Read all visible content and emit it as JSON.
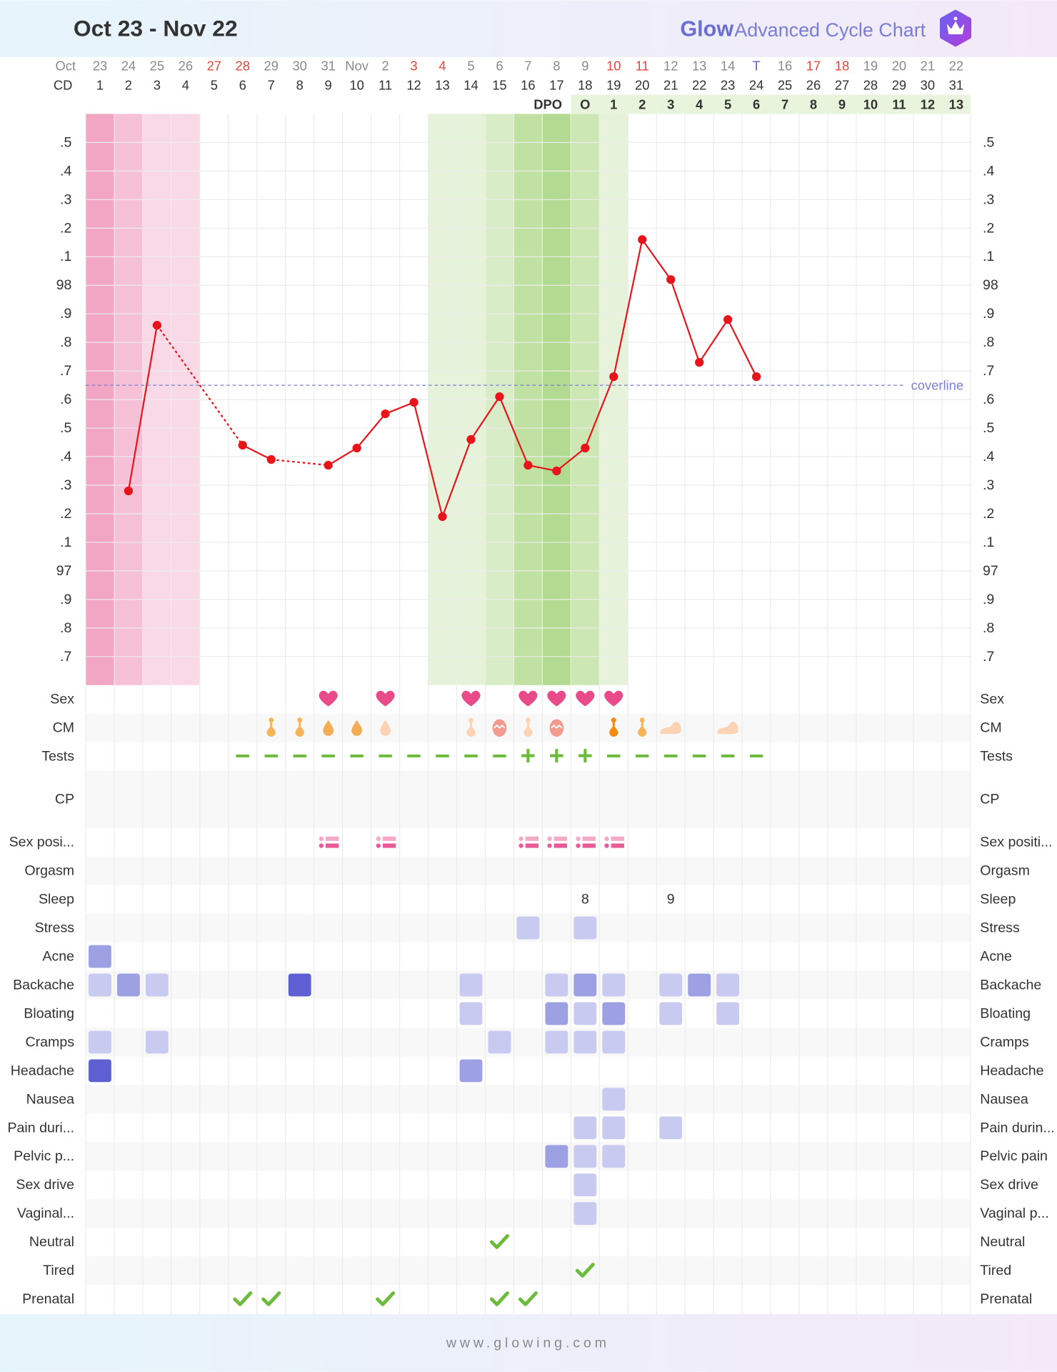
{
  "header": {
    "title": "Oct 23 - Nov 22",
    "brand": "Glow",
    "product": "Advanced Cycle Chart",
    "footer": "www.glowing.com"
  },
  "chart_data": {
    "type": "line",
    "month_label": "Oct",
    "cd_label": "CD",
    "dpo_label": "DPO",
    "dates": [
      23,
      24,
      25,
      26,
      27,
      28,
      29,
      30,
      31,
      "Nov",
      2,
      3,
      4,
      5,
      6,
      7,
      8,
      9,
      10,
      11,
      12,
      13,
      14,
      "T",
      16,
      17,
      18,
      19,
      20,
      21,
      22
    ],
    "date_colors": [
      "#8a8a8a",
      "#8a8a8a",
      "#8a8a8a",
      "#8a8a8a",
      "#e5473c",
      "#e5473c",
      "#8a8a8a",
      "#8a8a8a",
      "#8a8a8a",
      "#8a8a8a",
      "#8a8a8a",
      "#e5473c",
      "#e5473c",
      "#8a8a8a",
      "#8a8a8a",
      "#8a8a8a",
      "#8a8a8a",
      "#8a8a8a",
      "#e5473c",
      "#e5473c",
      "#8a8a8a",
      "#8a8a8a",
      "#8a8a8a",
      "#5b5fc7",
      "#8a8a8a",
      "#e5473c",
      "#e5473c",
      "#8a8a8a",
      "#8a8a8a",
      "#8a8a8a",
      "#8a8a8a"
    ],
    "categories": [
      1,
      2,
      3,
      4,
      5,
      6,
      7,
      8,
      9,
      10,
      11,
      12,
      13,
      14,
      15,
      16,
      17,
      18,
      19,
      20,
      21,
      22,
      23,
      24,
      25,
      26,
      27,
      28,
      29,
      30,
      31
    ],
    "dpo": [
      null,
      null,
      null,
      null,
      null,
      null,
      null,
      null,
      null,
      null,
      null,
      null,
      null,
      null,
      null,
      null,
      null,
      "O",
      1,
      2,
      3,
      4,
      5,
      6,
      7,
      8,
      9,
      10,
      11,
      12,
      13
    ],
    "values": [
      null,
      97.28,
      97.86,
      null,
      null,
      97.44,
      97.39,
      null,
      97.37,
      97.43,
      97.55,
      97.59,
      97.19,
      97.46,
      97.61,
      97.37,
      97.35,
      97.43,
      97.68,
      98.16,
      98.02,
      97.73,
      97.88,
      97.68,
      null,
      null,
      null,
      null,
      null,
      null,
      null
    ],
    "color": "#e8141c",
    "ylim": [
      96.6,
      98.6
    ],
    "yticks": [
      {
        "value": 96.7,
        "label": ".7"
      },
      {
        "value": 96.8,
        "label": ".8"
      },
      {
        "value": 96.9,
        "label": ".9"
      },
      97,
      {
        "value": 97.1,
        "label": ".1"
      },
      {
        "value": 97.2,
        "label": ".2"
      },
      {
        "value": 97.3,
        "label": ".3"
      },
      {
        "value": 97.4,
        "label": ".4"
      },
      {
        "value": 97.5,
        "label": ".5"
      },
      {
        "value": 97.6,
        "label": ".6"
      },
      {
        "value": 97.7,
        "label": ".7"
      },
      {
        "value": 97.8,
        "label": ".8"
      },
      {
        "value": 97.9,
        "label": ".9"
      },
      98,
      {
        "value": 98.1,
        "label": ".1"
      },
      {
        "value": 98.2,
        "label": ".2"
      },
      {
        "value": 98.3,
        "label": ".3"
      },
      {
        "value": 98.4,
        "label": ".4"
      },
      {
        "value": 98.5,
        "label": ".5"
      }
    ],
    "grid": true,
    "coverline": {
      "value": 97.65,
      "label": "coverline",
      "color": "#7b7fd0"
    },
    "bands": [
      {
        "from": 1,
        "to": 1,
        "color": "#f3a6c3"
      },
      {
        "from": 2,
        "to": 2,
        "color": "#f6c1d6"
      },
      {
        "from": 3,
        "to": 4,
        "color": "#f9d9e6"
      },
      {
        "from": 13,
        "to": 14,
        "color": "#e6f3da"
      },
      {
        "from": 15,
        "to": 15,
        "color": "#d9ecc8"
      },
      {
        "from": 16,
        "to": 16,
        "color": "#c0e1a2"
      },
      {
        "from": 17,
        "to": 17,
        "color": "#b3da91"
      },
      {
        "from": 18,
        "to": 18,
        "color": "#cce6b4"
      },
      {
        "from": 19,
        "to": 19,
        "color": "#e6f3da"
      }
    ]
  },
  "level_colors": [
    "#c9caef",
    "#9ea0e4",
    "#5d5fd3"
  ],
  "rows": [
    {
      "label": "Sex",
      "right_label": "Sex",
      "kind": "heart",
      "days": [
        9,
        11,
        14,
        16,
        17,
        18,
        19
      ]
    },
    {
      "label": "CM",
      "right_label": "CM",
      "kind": "cm",
      "days": [
        7,
        8,
        9,
        10,
        11,
        14,
        15,
        16,
        17,
        19,
        20,
        21,
        23
      ],
      "shapes": [
        "stem",
        "stem",
        "drop",
        "drop",
        "drop",
        "stem",
        "egg",
        "stem",
        "egg",
        "stem",
        "stem",
        "blob",
        "blob"
      ],
      "colors": [
        "#f5b45a",
        "#f5b45a",
        "#f5ad55",
        "#f5ad55",
        "#fcd3b4",
        "#fcd3b4",
        "#f09b8e",
        "#fcd3b4",
        "#f09b8e",
        "#f28a12",
        "#f5b45a",
        "#fcd3b4",
        "#fcd3b4"
      ]
    },
    {
      "label": "Tests",
      "right_label": "Tests",
      "kind": "sign",
      "days": [
        6,
        7,
        8,
        9,
        10,
        11,
        12,
        13,
        14,
        15,
        16,
        17,
        18,
        19,
        20,
        21,
        22,
        23,
        24
      ],
      "values": [
        "−",
        "−",
        "−",
        "−",
        "−",
        "−",
        "−",
        "−",
        "−",
        "−",
        "+",
        "+",
        "+",
        "−",
        "−",
        "−",
        "−",
        "−",
        "−"
      ]
    },
    {
      "label": "CP",
      "right_label": "CP",
      "kind": "empty"
    },
    {
      "label": "Sex posi...",
      "right_label": "Sex positi...",
      "kind": "position",
      "days": [
        9,
        11,
        16,
        17,
        18,
        19
      ]
    },
    {
      "label": "Orgasm",
      "right_label": "Orgasm",
      "kind": "empty"
    },
    {
      "label": "Sleep",
      "right_label": "Sleep",
      "kind": "number",
      "days": [
        18,
        21
      ],
      "values": [
        8,
        9
      ]
    },
    {
      "label": "Stress",
      "right_label": "Stress",
      "kind": "level",
      "days": [
        16,
        18
      ],
      "levels": [
        1,
        1
      ]
    },
    {
      "label": "Acne",
      "right_label": "Acne",
      "kind": "level",
      "days": [
        1
      ],
      "levels": [
        2
      ]
    },
    {
      "label": "Backache",
      "right_label": "Backache",
      "kind": "level",
      "days": [
        1,
        2,
        3,
        8,
        14,
        17,
        18,
        19,
        21,
        22,
        23
      ],
      "levels": [
        1,
        2,
        1,
        3,
        1,
        1,
        2,
        1,
        1,
        2,
        1
      ]
    },
    {
      "label": "Bloating",
      "right_label": "Bloating",
      "kind": "level",
      "days": [
        14,
        17,
        18,
        19,
        21,
        23
      ],
      "levels": [
        1,
        2,
        1,
        2,
        1,
        1
      ]
    },
    {
      "label": "Cramps",
      "right_label": "Cramps",
      "kind": "level",
      "days": [
        1,
        3,
        15,
        17,
        18,
        19
      ],
      "levels": [
        1,
        1,
        1,
        1,
        1,
        1
      ]
    },
    {
      "label": "Headache",
      "right_label": "Headache",
      "kind": "level",
      "days": [
        1,
        14
      ],
      "levels": [
        3,
        2
      ]
    },
    {
      "label": "Nausea",
      "right_label": "Nausea",
      "kind": "level",
      "days": [
        19
      ],
      "levels": [
        1
      ]
    },
    {
      "label": "Pain duri...",
      "right_label": "Pain durin...",
      "kind": "level",
      "days": [
        18,
        19,
        21
      ],
      "levels": [
        1,
        1,
        1
      ]
    },
    {
      "label": "Pelvic p...",
      "right_label": "Pelvic pain",
      "kind": "level",
      "days": [
        17,
        18,
        19
      ],
      "levels": [
        2,
        1,
        1
      ]
    },
    {
      "label": "Sex drive",
      "right_label": "Sex drive",
      "kind": "level",
      "days": [
        18
      ],
      "levels": [
        1
      ]
    },
    {
      "label": "Vaginal...",
      "right_label": "Vaginal p...",
      "kind": "level",
      "days": [
        18
      ],
      "levels": [
        1
      ]
    },
    {
      "label": "Neutral",
      "right_label": "Neutral",
      "kind": "check",
      "days": [
        15
      ]
    },
    {
      "label": "Tired",
      "right_label": "Tired",
      "kind": "check",
      "days": [
        18
      ]
    },
    {
      "label": "Prenatal",
      "right_label": "Prenatal",
      "kind": "check",
      "days": [
        6,
        7,
        11,
        15,
        16
      ]
    }
  ]
}
